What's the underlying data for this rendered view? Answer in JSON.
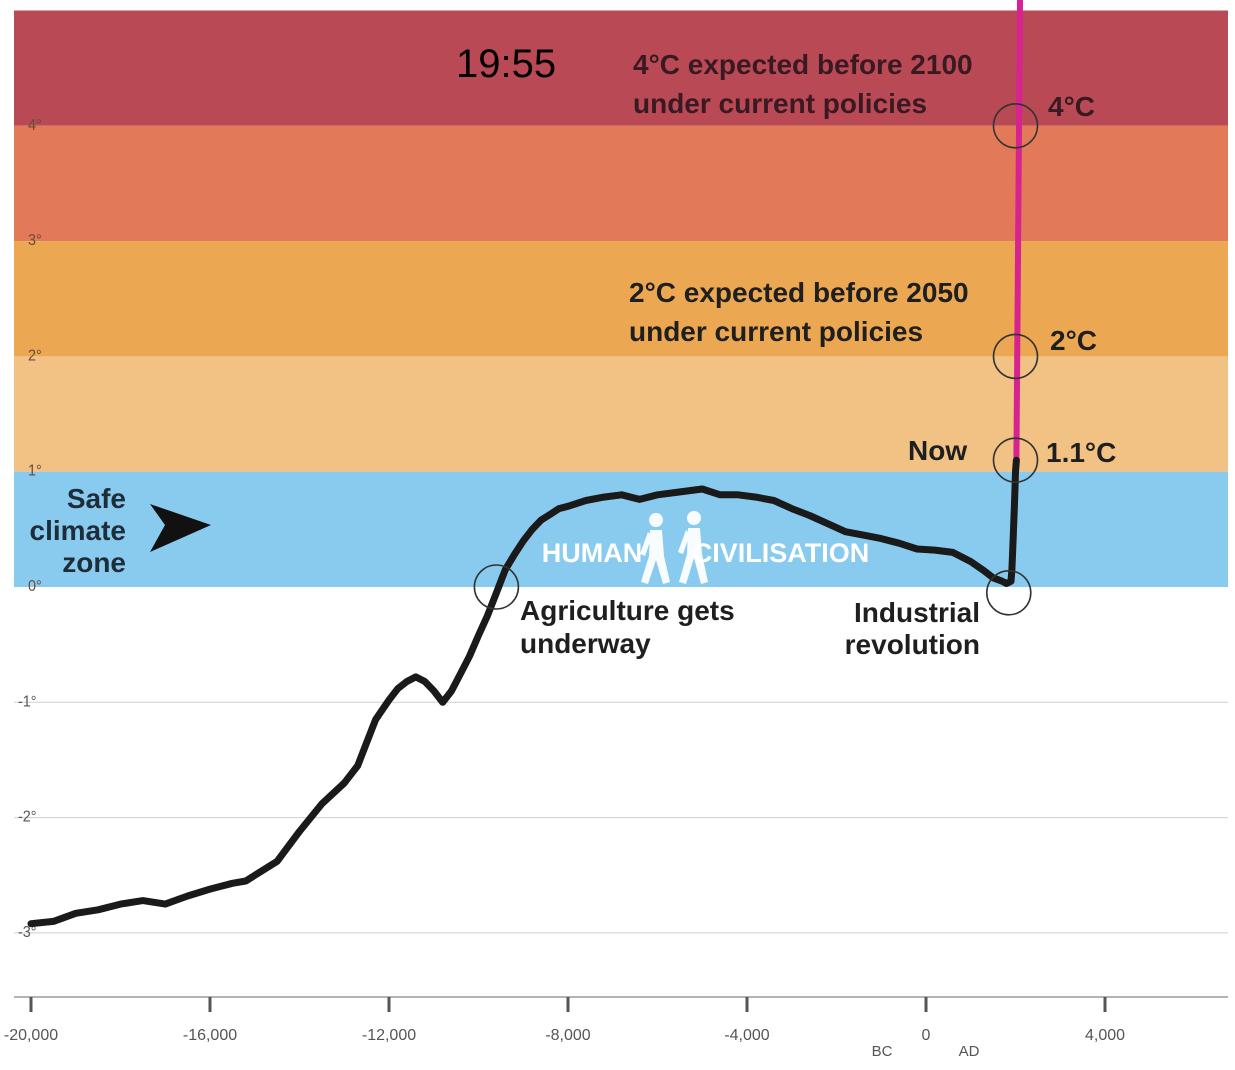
{
  "status_bar": {
    "time": "19:55"
  },
  "chart_data": {
    "type": "line",
    "title": "",
    "xlabel": "",
    "ylabel": "",
    "xlim": [
      -20000,
      6500
    ],
    "ylim": [
      -3.5,
      5
    ],
    "grid": true,
    "x_ticks": [
      -20000,
      -16000,
      -12000,
      -8000,
      -4000,
      0,
      4000
    ],
    "x_tick_labels": [
      "-20,000",
      "-16,000",
      "-12,000",
      "-8,000",
      "-4,000",
      "0",
      "4,000"
    ],
    "era_labels": {
      "bc": "BC",
      "ad": "AD"
    },
    "y_ticks": [
      4,
      3,
      2,
      1,
      0,
      -1,
      -2,
      -3
    ],
    "y_tick_labels": [
      "4°",
      "3°",
      "2°",
      "1°",
      "0°",
      "-1°",
      "-2°",
      "-3°"
    ],
    "bands": [
      {
        "from": 4,
        "to": 5,
        "color": "#b94a55"
      },
      {
        "from": 3,
        "to": 4,
        "color": "#e27a5a"
      },
      {
        "from": 2,
        "to": 3,
        "color": "#eca752"
      },
      {
        "from": 1,
        "to": 2,
        "color": "#f1c283"
      },
      {
        "from": 0,
        "to": 1,
        "color": "#88cbee"
      }
    ],
    "series": [
      {
        "color": "#1a1a1a",
        "x": [
          -20000,
          -19500,
          -19000,
          -18500,
          -18000,
          -17500,
          -17000,
          -16500,
          -16000,
          -15500,
          -15200,
          -15000,
          -14500,
          -14000,
          -13500,
          -13000,
          -12700,
          -12500,
          -12300,
          -12000,
          -11800,
          -11600,
          -11400,
          -11200,
          -11000,
          -10800,
          -10600,
          -10400,
          -10200,
          -10000,
          -9800,
          -9600,
          -9400,
          -9200,
          -9000,
          -8800,
          -8600,
          -8400,
          -8200,
          -8000,
          -7600,
          -7200,
          -6800,
          -6400,
          -6000,
          -5600,
          -5000,
          -4600,
          -4200,
          -3800,
          -3400,
          -3000,
          -2600,
          -2200,
          -1800,
          -1400,
          -1000,
          -600,
          -200,
          200,
          600,
          1000,
          1300,
          1500,
          1700,
          1800,
          1850,
          1900,
          1920,
          1950,
          1980,
          2000,
          2020
        ],
        "y": [
          -2.92,
          -2.9,
          -2.83,
          -2.8,
          -2.75,
          -2.72,
          -2.75,
          -2.68,
          -2.62,
          -2.57,
          -2.55,
          -2.5,
          -2.38,
          -2.12,
          -1.88,
          -1.7,
          -1.55,
          -1.35,
          -1.15,
          -0.98,
          -0.88,
          -0.82,
          -0.78,
          -0.82,
          -0.9,
          -1.0,
          -0.9,
          -0.75,
          -0.6,
          -0.42,
          -0.25,
          -0.05,
          0.15,
          0.28,
          0.4,
          0.5,
          0.58,
          0.63,
          0.68,
          0.7,
          0.75,
          0.78,
          0.8,
          0.76,
          0.8,
          0.82,
          0.85,
          0.8,
          0.8,
          0.78,
          0.75,
          0.68,
          0.62,
          0.55,
          0.48,
          0.45,
          0.42,
          0.38,
          0.33,
          0.32,
          0.3,
          0.22,
          0.14,
          0.08,
          0.05,
          0.03,
          0.04,
          0.05,
          0.15,
          0.45,
          0.75,
          1.0,
          1.1
        ]
      },
      {
        "color": "#d6238f",
        "x": [
          2020,
          2050,
          2100
        ],
        "y": [
          1.1,
          2.0,
          5.2
        ]
      }
    ],
    "circled_points": [
      {
        "x": -9600,
        "y": 0.0
      },
      {
        "x": 1850,
        "y": -0.05
      },
      {
        "x": 2000,
        "y": 1.1
      },
      {
        "x": 2000,
        "y": 2.0
      },
      {
        "x": 2000,
        "y": 4.0
      }
    ],
    "annotations": {
      "top_note": [
        "4°C expected before 2100",
        "under current policies"
      ],
      "mid_note": [
        "2°C expected before 2050",
        "under current policies"
      ],
      "label_4c": "4°C",
      "label_2c": "2°C",
      "label_now": "Now",
      "label_11c": "1.1°C",
      "safe_zone": [
        "Safe",
        "climate",
        "zone"
      ],
      "human": "HUMAN",
      "civilisation": "CIVILISATION",
      "agriculture": [
        "Agriculture gets",
        "underway"
      ],
      "industrial": [
        "Industrial",
        "revolution"
      ]
    }
  }
}
